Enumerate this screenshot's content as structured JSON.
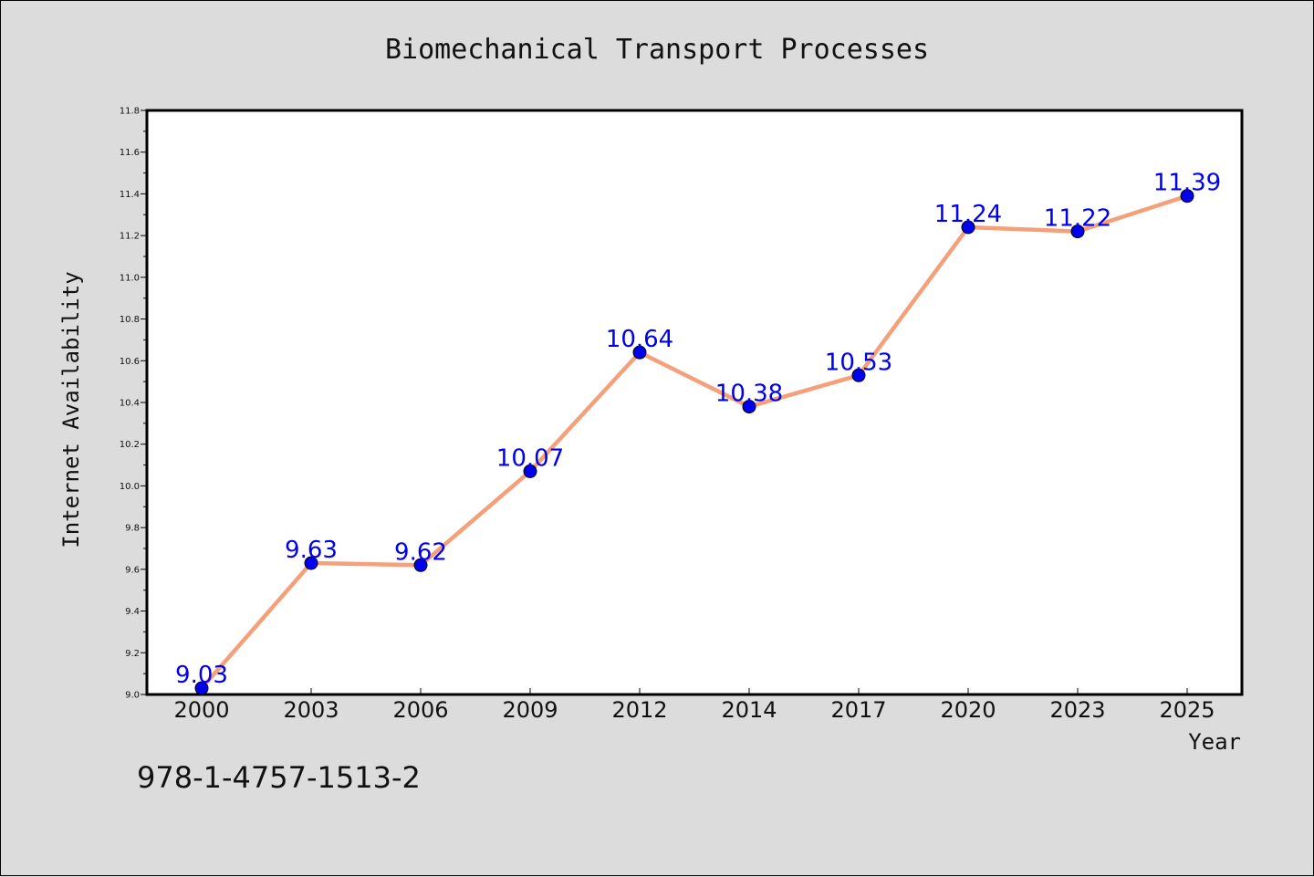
{
  "chart_data": {
    "type": "line",
    "title": "Biomechanical Transport Processes",
    "xlabel": "Year",
    "ylabel": "Internet Availability",
    "categories": [
      "2000",
      "2003",
      "2006",
      "2009",
      "2012",
      "2014",
      "2017",
      "2020",
      "2023",
      "2025"
    ],
    "values": [
      9.03,
      9.63,
      9.62,
      10.07,
      10.64,
      10.38,
      10.53,
      11.24,
      11.22,
      11.39
    ],
    "data_labels": [
      "9.03",
      "9.63",
      "9.62",
      "10.07",
      "10.64",
      "10.38",
      "10.53",
      "11.24",
      "11.22",
      "11.39"
    ],
    "ylim": [
      9.0,
      11.8
    ],
    "yticks": [
      "9.0",
      "9.2",
      "9.4",
      "9.6",
      "9.8",
      "10.0",
      "10.2",
      "10.4",
      "10.6",
      "10.8",
      "11.0",
      "11.2",
      "11.4",
      "11.6",
      "11.8"
    ],
    "grid": false,
    "line_color": "#f4a07a",
    "marker_color": "#0000ee",
    "label_color": "#0000ee"
  },
  "footer": {
    "isbn": "978-1-4757-1513-2"
  }
}
